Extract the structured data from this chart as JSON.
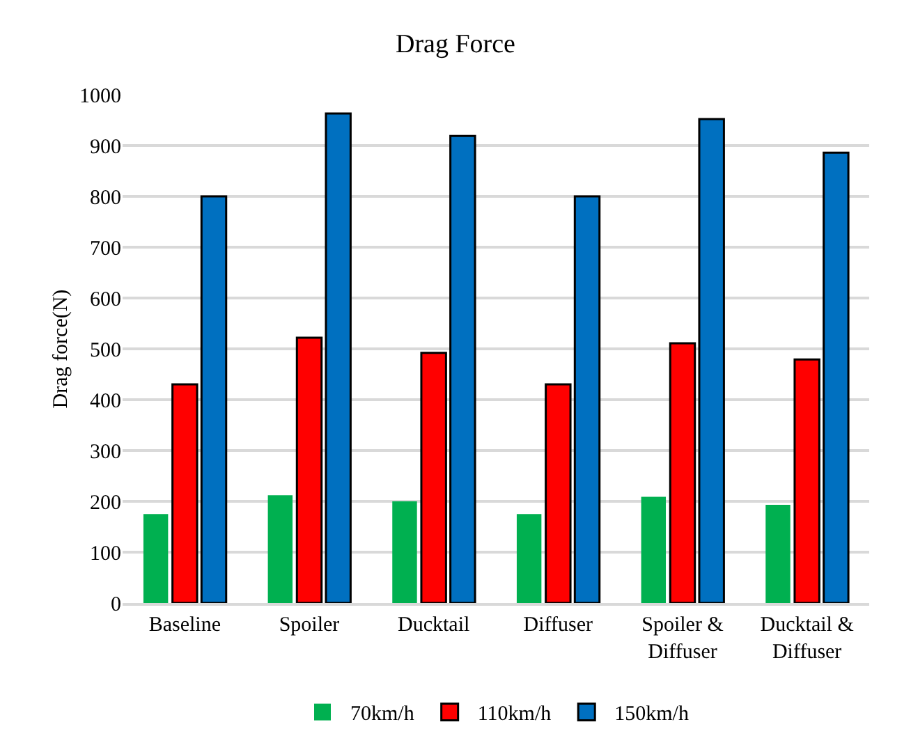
{
  "chart_data": {
    "type": "bar",
    "title": "Drag Force",
    "ylabel": "Drag force(N)",
    "categories": [
      "Baseline",
      "Spoiler",
      "Ducktail",
      "Diffuser",
      "Spoiler &\nDiffuser",
      "Ducktail &\nDiffuser"
    ],
    "series": [
      {
        "name": "70km/h",
        "color": "#00b050",
        "values": [
          175,
          212,
          200,
          175,
          209,
          193
        ]
      },
      {
        "name": "110km/h",
        "color": "#ff0000",
        "values": [
          430,
          522,
          492,
          430,
          511,
          479
        ]
      },
      {
        "name": "150km/h",
        "color": "#0070c0",
        "values": [
          800,
          963,
          919,
          800,
          952,
          886
        ]
      }
    ],
    "ylim": [
      0,
      1000
    ],
    "yticks": [
      0,
      100,
      200,
      300,
      400,
      500,
      600,
      700,
      800,
      900,
      1000
    ],
    "grid": "y",
    "legend": "bottom"
  }
}
